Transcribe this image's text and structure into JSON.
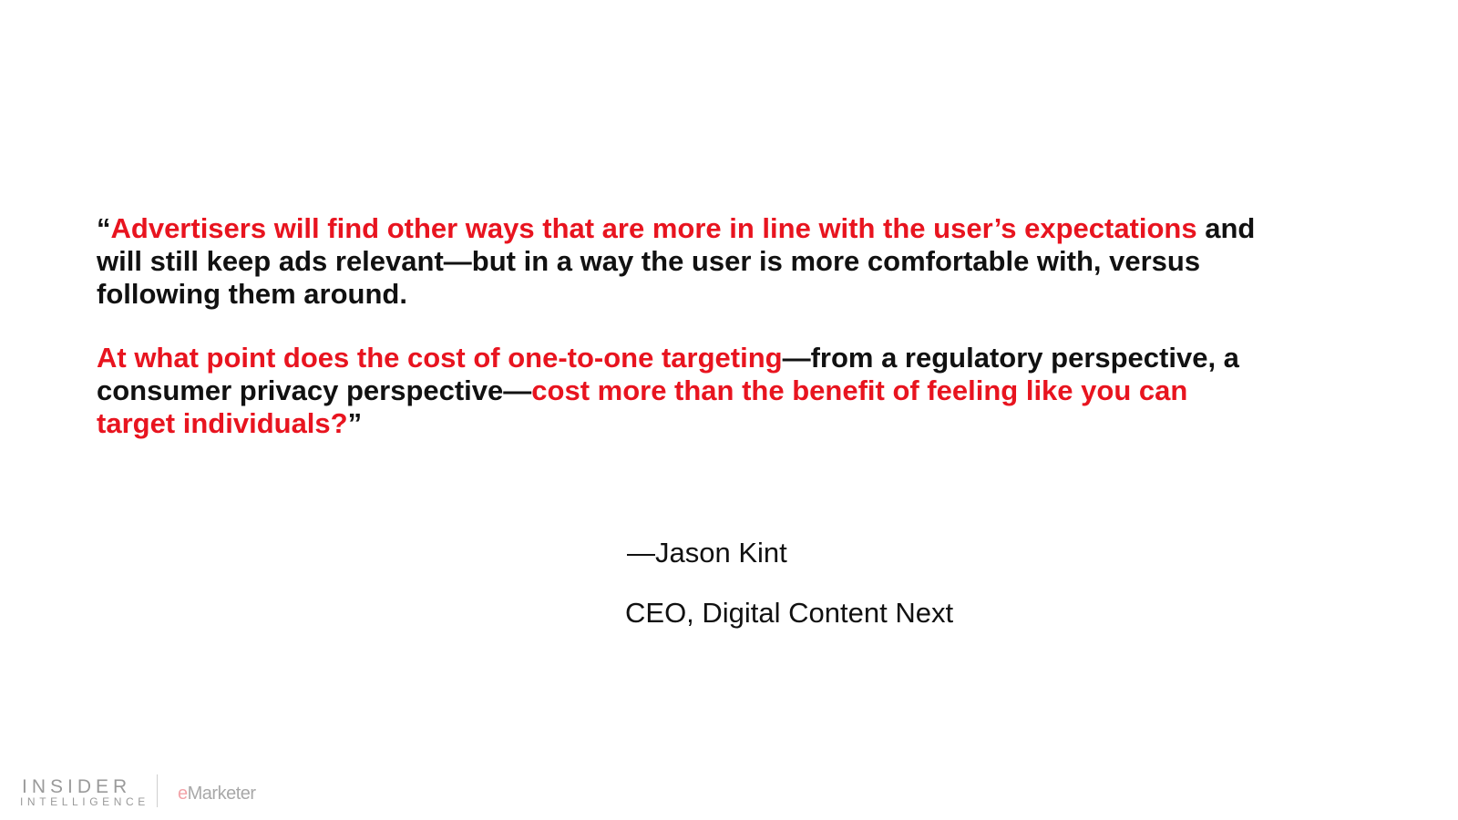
{
  "quote": {
    "paragraphs": [
      {
        "lines": [
          [
            {
              "text": "“",
              "color": "black"
            },
            {
              "text": "Advertisers will find other ways that are more in line with the user’s expectations",
              "color": "red"
            },
            {
              "text": " and",
              "color": "black"
            }
          ],
          [
            {
              "text": "will still keep ads relevant—but in a way the user is more comfortable with, versus",
              "color": "black"
            }
          ],
          [
            {
              "text": "following them around.",
              "color": "black"
            }
          ]
        ]
      },
      {
        "lines": [
          [
            {
              "text": "At what point does the cost of one-to-one targeting",
              "color": "red"
            },
            {
              "text": "—from a regulatory perspective, a",
              "color": "black"
            }
          ],
          [
            {
              "text": "consumer privacy perspective—",
              "color": "black"
            },
            {
              "text": "cost more than the benefit of feeling like you can",
              "color": "red"
            }
          ],
          [
            {
              "text": "target individuals?",
              "color": "red"
            },
            {
              "text": "”",
              "color": "black"
            }
          ]
        ]
      }
    ]
  },
  "attribution": {
    "name": "—Jason Kint",
    "title": "CEO, Digital Content Next"
  },
  "footer": {
    "logo_line1": "INSIDER",
    "logo_line2": "INTELLIGENCE",
    "emarketer_e": "e",
    "emarketer_rest": "Marketer"
  },
  "colors": {
    "red": "#e8141f",
    "black": "#111111"
  }
}
